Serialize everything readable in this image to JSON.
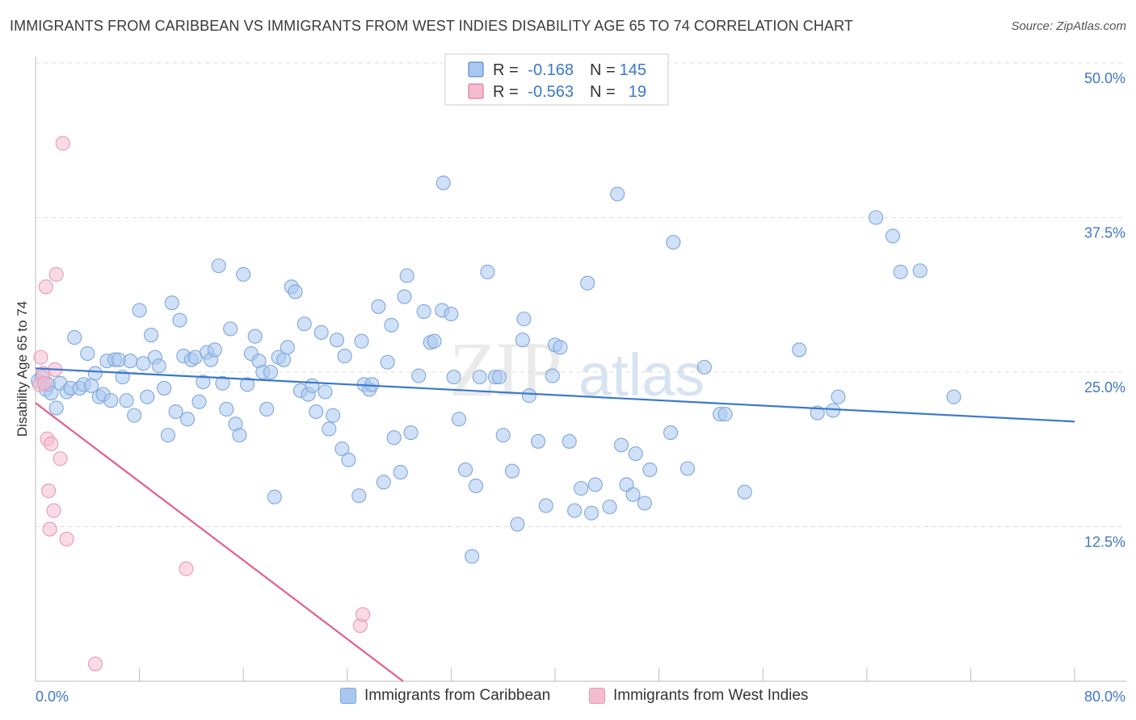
{
  "title": "IMMIGRANTS FROM CARIBBEAN VS IMMIGRANTS FROM WEST INDIES DISABILITY AGE 65 TO 74 CORRELATION CHART",
  "source": "Source: ZipAtlas.com",
  "watermark": "ZIPatlas",
  "colors": {
    "blue": "#3a78cc",
    "blue_fill": "#a9c8f0",
    "pink": "#e0608f",
    "pink_fill": "#f5bccf",
    "tick_text": "#3f77c9",
    "grid": "#dcdcdc"
  },
  "legend": {
    "r_label": "R =",
    "n_label": "N =",
    "rows": [
      {
        "r": "-0.168",
        "n": "145"
      },
      {
        "r": "-0.563",
        "n": "19"
      }
    ]
  },
  "bottom_legend": [
    "Immigrants from Caribbean",
    "Immigrants from West Indies"
  ],
  "chart_data": {
    "type": "scatter",
    "title": "IMMIGRANTS FROM CARIBBEAN VS IMMIGRANTS FROM WEST INDIES DISABILITY AGE 65 TO 74 CORRELATION CHART",
    "xlabel": "",
    "ylabel": "Disability Age 65 to 74",
    "xlim": [
      0,
      80
    ],
    "ylim": [
      0,
      50
    ],
    "y_ticks": [
      {
        "value": 12.5,
        "label": "12.5%"
      },
      {
        "value": 25.0,
        "label": "25.0%"
      },
      {
        "value": 37.5,
        "label": "37.5%"
      },
      {
        "value": 50.0,
        "label": "50.0%"
      }
    ],
    "x_ticks": [
      {
        "value": 0,
        "label": "0.0%"
      },
      {
        "value": 80,
        "label": "80.0%"
      }
    ],
    "x_minor_ticks": [
      0,
      8,
      16,
      24,
      32,
      40,
      48,
      56,
      64,
      72,
      80
    ],
    "grid": true,
    "legend_position": "top-center",
    "series": [
      {
        "name": "Immigrants from Caribbean",
        "color": "#3a78cc",
        "r": -0.168,
        "n": 145,
        "trend": {
          "x0": 0,
          "y0": 25.3,
          "x1": 80,
          "y1": 21.0
        },
        "points": [
          [
            0.2,
            24.3
          ],
          [
            0.5,
            24.6
          ],
          [
            0.8,
            23.6
          ],
          [
            1.0,
            24.0
          ],
          [
            1.2,
            23.3
          ],
          [
            1.6,
            22.1
          ],
          [
            1.9,
            24.1
          ],
          [
            2.4,
            23.4
          ],
          [
            2.7,
            23.7
          ],
          [
            3.0,
            27.8
          ],
          [
            3.4,
            23.7
          ],
          [
            3.7,
            24.0
          ],
          [
            4.0,
            26.5
          ],
          [
            4.3,
            23.9
          ],
          [
            4.6,
            24.9
          ],
          [
            4.9,
            23.0
          ],
          [
            5.2,
            23.2
          ],
          [
            5.5,
            25.9
          ],
          [
            5.8,
            22.7
          ],
          [
            6.1,
            26.0
          ],
          [
            6.4,
            26.0
          ],
          [
            6.7,
            24.6
          ],
          [
            7.0,
            22.7
          ],
          [
            7.3,
            25.9
          ],
          [
            7.6,
            21.5
          ],
          [
            8.0,
            30.0
          ],
          [
            8.3,
            25.7
          ],
          [
            8.6,
            23.0
          ],
          [
            8.9,
            28.0
          ],
          [
            9.2,
            26.2
          ],
          [
            9.5,
            25.5
          ],
          [
            9.9,
            23.7
          ],
          [
            10.2,
            19.9
          ],
          [
            10.5,
            30.6
          ],
          [
            10.8,
            21.8
          ],
          [
            11.1,
            29.2
          ],
          [
            11.4,
            26.3
          ],
          [
            11.7,
            21.2
          ],
          [
            12.0,
            26.0
          ],
          [
            12.3,
            26.2
          ],
          [
            12.6,
            22.6
          ],
          [
            12.9,
            24.2
          ],
          [
            13.2,
            26.6
          ],
          [
            13.5,
            26.0
          ],
          [
            13.8,
            26.8
          ],
          [
            14.1,
            33.6
          ],
          [
            14.4,
            24.1
          ],
          [
            14.7,
            22.0
          ],
          [
            15.0,
            28.5
          ],
          [
            15.4,
            20.8
          ],
          [
            15.7,
            19.9
          ],
          [
            16.0,
            32.9
          ],
          [
            16.3,
            24.0
          ],
          [
            16.6,
            26.5
          ],
          [
            16.9,
            27.9
          ],
          [
            17.2,
            25.9
          ],
          [
            17.5,
            25.0
          ],
          [
            17.8,
            22.0
          ],
          [
            18.1,
            25.0
          ],
          [
            18.4,
            14.9
          ],
          [
            18.7,
            26.2
          ],
          [
            19.1,
            26.0
          ],
          [
            19.4,
            27.0
          ],
          [
            19.7,
            31.9
          ],
          [
            20.0,
            31.5
          ],
          [
            20.4,
            23.5
          ],
          [
            20.7,
            28.9
          ],
          [
            21.0,
            23.2
          ],
          [
            21.3,
            23.9
          ],
          [
            21.6,
            21.8
          ],
          [
            22.0,
            28.2
          ],
          [
            22.3,
            23.4
          ],
          [
            22.6,
            20.4
          ],
          [
            22.9,
            21.5
          ],
          [
            23.2,
            27.6
          ],
          [
            23.6,
            18.8
          ],
          [
            23.8,
            26.3
          ],
          [
            24.1,
            17.9
          ],
          [
            24.9,
            15.0
          ],
          [
            25.1,
            27.5
          ],
          [
            25.3,
            24.0
          ],
          [
            25.7,
            23.6
          ],
          [
            25.9,
            24.0
          ],
          [
            26.4,
            30.3
          ],
          [
            26.8,
            16.1
          ],
          [
            27.1,
            25.8
          ],
          [
            27.4,
            28.8
          ],
          [
            27.6,
            19.7
          ],
          [
            28.1,
            16.9
          ],
          [
            28.4,
            31.1
          ],
          [
            28.6,
            32.8
          ],
          [
            28.9,
            20.1
          ],
          [
            29.5,
            24.7
          ],
          [
            29.9,
            29.9
          ],
          [
            30.4,
            27.4
          ],
          [
            30.7,
            27.5
          ],
          [
            31.4,
            40.3
          ],
          [
            31.3,
            30.0
          ],
          [
            32.0,
            29.7
          ],
          [
            32.2,
            24.6
          ],
          [
            32.6,
            21.2
          ],
          [
            33.1,
            17.1
          ],
          [
            33.6,
            10.1
          ],
          [
            33.9,
            15.8
          ],
          [
            34.2,
            24.6
          ],
          [
            34.8,
            33.1
          ],
          [
            35.4,
            24.6
          ],
          [
            35.7,
            24.6
          ],
          [
            36.0,
            19.9
          ],
          [
            36.7,
            17.0
          ],
          [
            37.1,
            12.7
          ],
          [
            37.5,
            27.6
          ],
          [
            37.6,
            29.3
          ],
          [
            38.0,
            23.1
          ],
          [
            38.7,
            19.4
          ],
          [
            39.3,
            14.2
          ],
          [
            39.8,
            24.7
          ],
          [
            40.0,
            27.2
          ],
          [
            40.4,
            27.0
          ],
          [
            41.1,
            19.4
          ],
          [
            41.5,
            13.8
          ],
          [
            42.0,
            15.6
          ],
          [
            42.5,
            32.2
          ],
          [
            42.8,
            13.6
          ],
          [
            43.1,
            15.9
          ],
          [
            44.2,
            14.1
          ],
          [
            44.8,
            39.4
          ],
          [
            45.1,
            19.1
          ],
          [
            45.5,
            15.9
          ],
          [
            46.0,
            15.1
          ],
          [
            46.2,
            18.4
          ],
          [
            46.9,
            14.4
          ],
          [
            47.3,
            17.1
          ],
          [
            48.9,
            20.1
          ],
          [
            49.1,
            35.5
          ],
          [
            50.2,
            17.2
          ],
          [
            51.5,
            25.4
          ],
          [
            52.7,
            21.6
          ],
          [
            53.1,
            21.6
          ],
          [
            54.6,
            15.3
          ],
          [
            58.8,
            26.8
          ],
          [
            60.2,
            21.7
          ],
          [
            61.4,
            21.9
          ],
          [
            61.8,
            23.0
          ],
          [
            64.7,
            37.5
          ],
          [
            66.0,
            36.0
          ],
          [
            66.6,
            33.1
          ],
          [
            68.1,
            33.2
          ],
          [
            70.7,
            23.0
          ]
        ]
      },
      {
        "name": "Immigrants from West Indies",
        "color": "#e0608f",
        "r": -0.563,
        "n": 19,
        "trend": {
          "x0": 0,
          "y0": 22.5,
          "x1": 28.3,
          "y1": 0
        },
        "points": [
          [
            0.3,
            24.0
          ],
          [
            0.4,
            26.2
          ],
          [
            0.6,
            24.9
          ],
          [
            0.7,
            24.1
          ],
          [
            0.8,
            31.9
          ],
          [
            0.9,
            19.6
          ],
          [
            1.0,
            15.4
          ],
          [
            1.1,
            12.3
          ],
          [
            1.2,
            19.2
          ],
          [
            1.4,
            13.8
          ],
          [
            1.5,
            25.2
          ],
          [
            1.6,
            32.9
          ],
          [
            1.9,
            18.0
          ],
          [
            2.1,
            43.5
          ],
          [
            2.4,
            11.5
          ],
          [
            4.6,
            1.4
          ],
          [
            11.6,
            9.1
          ],
          [
            25.0,
            4.5
          ],
          [
            25.2,
            5.4
          ]
        ]
      }
    ]
  }
}
